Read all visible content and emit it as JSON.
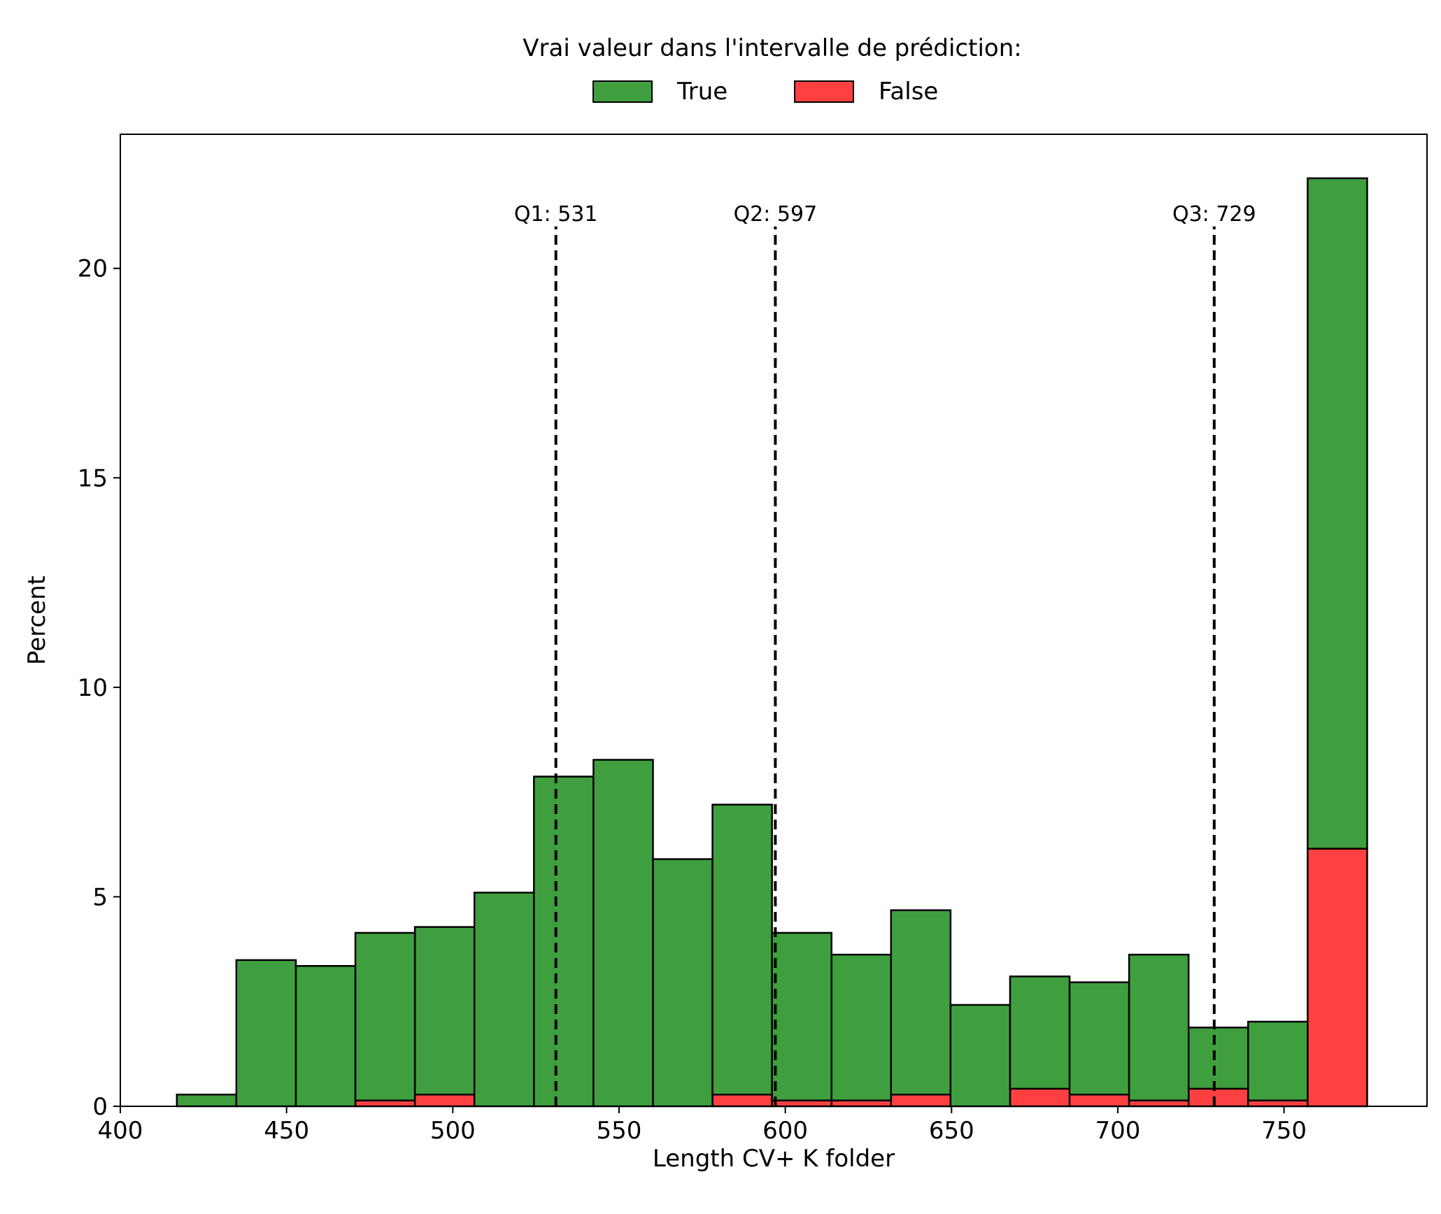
{
  "chart_data": {
    "type": "bar",
    "stacked": true,
    "title": "",
    "xlabel": "Length CV+ K folder",
    "ylabel": "Percent",
    "xlim": [
      400,
      793
    ],
    "ylim": [
      0,
      23.2
    ],
    "xticks": [
      400,
      450,
      500,
      550,
      600,
      650,
      700,
      750
    ],
    "yticks": [
      0,
      5,
      10,
      15,
      20
    ],
    "grid": false,
    "legend": {
      "title": "Vrai valeur dans l'intervalle de prédiction:",
      "placement": "top-center-outside",
      "entries": [
        {
          "label": "True",
          "color": "#3f9f3f"
        },
        {
          "label": "False",
          "color": "#ff4040"
        }
      ]
    },
    "bin_edges": [
      417,
      434.9,
      452.8,
      470.7,
      488.6,
      506.5,
      524.4,
      542.3,
      560.2,
      578.1,
      596.0,
      613.9,
      631.8,
      649.7,
      667.6,
      685.5,
      703.4,
      721.3,
      739.2,
      757.1,
      775.0
    ],
    "series": [
      {
        "name": "False",
        "color": "#ff4040",
        "values": [
          0,
          0,
          0,
          0.14,
          0.28,
          0,
          0,
          0,
          0,
          0.28,
          0.14,
          0.14,
          0.28,
          0,
          0.42,
          0.28,
          0.14,
          0.42,
          0.14,
          6.15
        ]
      },
      {
        "name": "True",
        "color": "#3f9f3f",
        "values": [
          0.28,
          3.49,
          3.35,
          4.0,
          4.0,
          5.1,
          7.87,
          8.27,
          5.9,
          6.92,
          4.0,
          3.48,
          4.4,
          2.42,
          2.68,
          2.68,
          3.48,
          1.46,
          1.88,
          16.0
        ]
      }
    ],
    "annotations": [
      {
        "label": "Q1: 531",
        "x": 531
      },
      {
        "label": "Q2: 597",
        "x": 597
      },
      {
        "label": "Q3: 729",
        "x": 729
      }
    ],
    "quartile_line_top": 21.0
  }
}
